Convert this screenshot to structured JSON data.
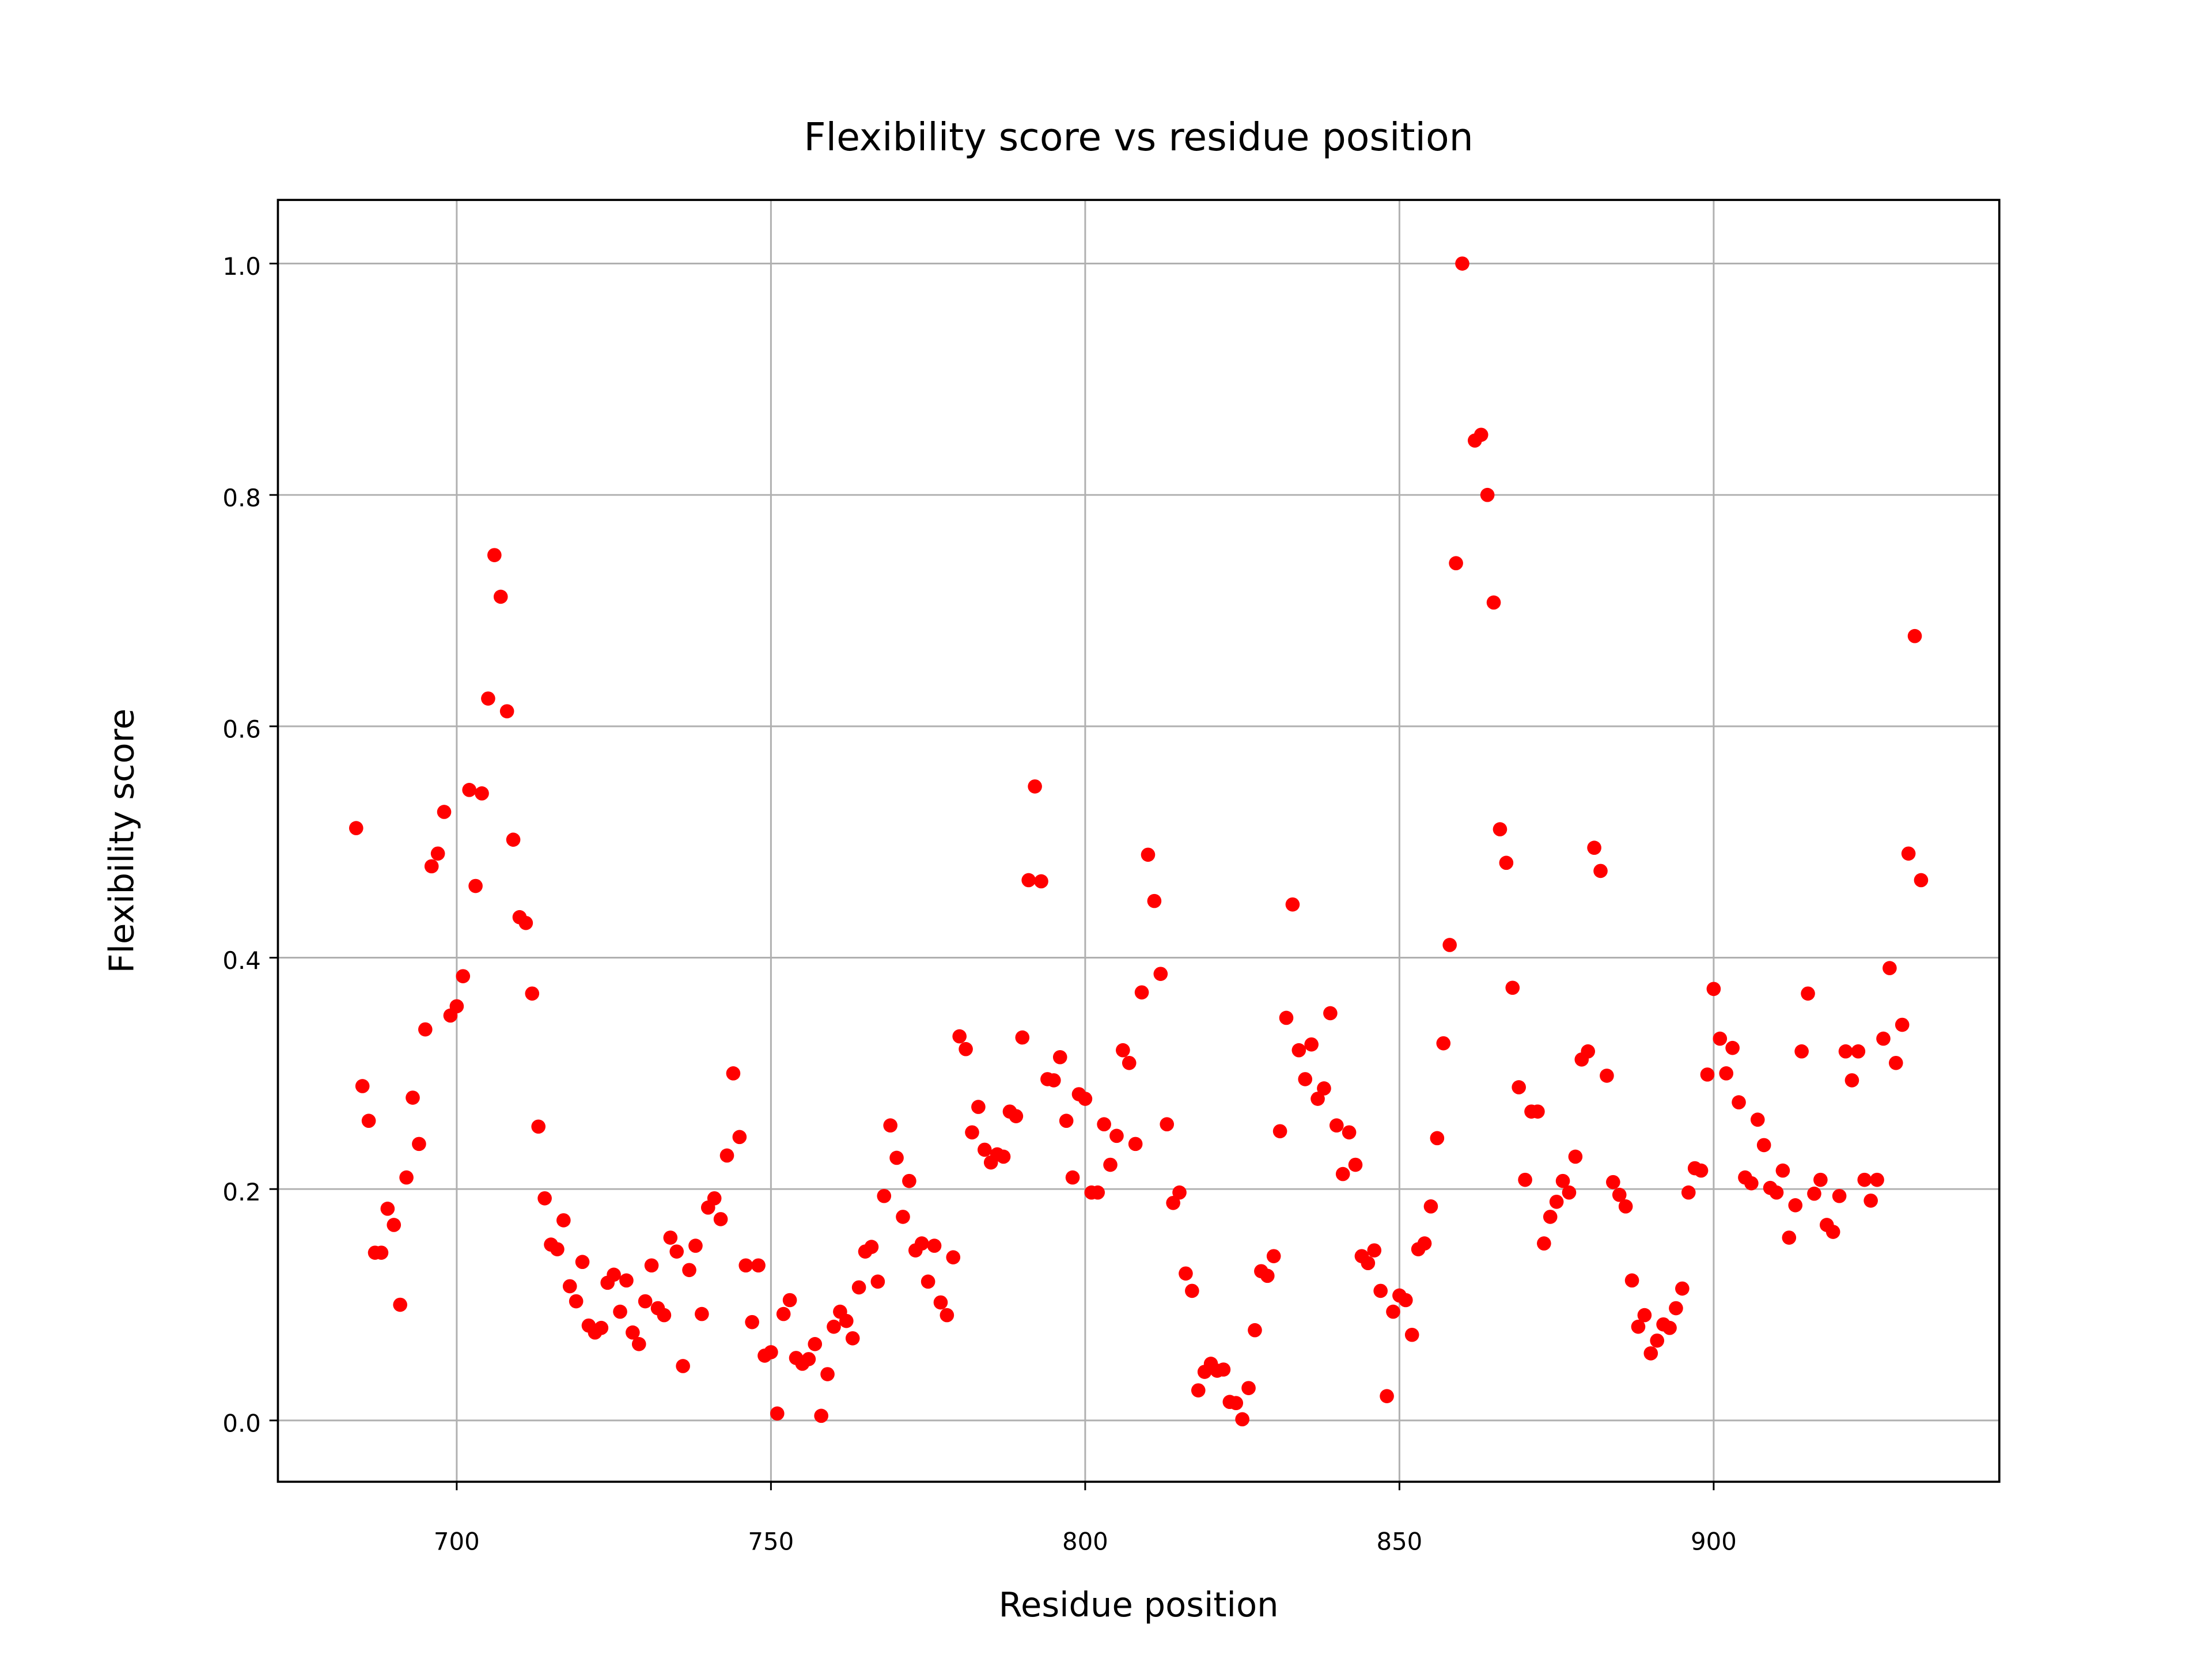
{
  "chart_data": {
    "type": "scatter",
    "title": "Flexibility score vs residue position",
    "x_label": "Residue position",
    "y_label": "Flexibility score",
    "color": "#ff0000",
    "grid": true,
    "xlim": [
      671.55,
      945.45
    ],
    "ylim": [
      -0.053,
      1.055
    ],
    "xticks": [
      700,
      750,
      800,
      850,
      900
    ],
    "yticks": [
      {
        "value": 0,
        "label": "0.0"
      },
      0.2,
      0.4,
      0.6,
      0.8,
      {
        "value": 1,
        "label": "1.0"
      }
    ],
    "x": [
      684,
      685,
      686,
      687,
      688,
      689,
      690,
      691,
      692,
      693,
      694,
      695,
      696,
      697,
      698,
      699,
      700,
      701,
      702,
      703,
      704,
      705,
      706,
      707,
      708,
      709,
      710,
      711,
      712,
      713,
      714,
      715,
      716,
      717,
      718,
      719,
      720,
      721,
      722,
      723,
      724,
      725,
      726,
      727,
      728,
      729,
      730,
      731,
      732,
      733,
      734,
      735,
      736,
      737,
      738,
      739,
      740,
      741,
      742,
      743,
      744,
      745,
      746,
      747,
      748,
      749,
      750,
      751,
      752,
      753,
      754,
      755,
      756,
      757,
      758,
      759,
      760,
      761,
      762,
      763,
      764,
      765,
      766,
      767,
      768,
      769,
      770,
      771,
      772,
      773,
      774,
      775,
      776,
      777,
      778,
      779,
      780,
      781,
      782,
      783,
      784,
      785,
      786,
      787,
      788,
      789,
      790,
      791,
      792,
      793,
      794,
      795,
      796,
      797,
      798,
      799,
      800,
      801,
      802,
      803,
      804,
      805,
      806,
      807,
      808,
      809,
      810,
      811,
      812,
      813,
      814,
      815,
      816,
      817,
      818,
      819,
      820,
      821,
      822,
      823,
      824,
      825,
      826,
      827,
      828,
      829,
      830,
      831,
      832,
      833,
      834,
      835,
      836,
      837,
      838,
      839,
      840,
      841,
      842,
      843,
      844,
      845,
      846,
      847,
      848,
      849,
      850,
      851,
      852,
      853,
      854,
      855,
      856,
      857,
      858,
      859,
      860,
      862,
      863,
      864,
      865,
      866,
      867,
      868,
      869,
      870,
      871,
      872,
      873,
      874,
      875,
      876,
      877,
      878,
      879,
      880,
      881,
      882,
      883,
      884,
      885,
      886,
      887,
      888,
      889,
      890,
      891,
      892,
      893,
      894,
      895,
      896,
      897,
      898,
      899,
      900,
      901,
      902,
      903,
      904,
      905,
      906,
      907,
      908,
      909,
      910,
      911,
      912,
      913,
      914,
      915,
      916,
      917,
      918,
      919,
      920,
      921,
      922,
      923,
      924,
      925,
      926,
      927,
      928,
      929,
      930,
      931,
      932,
      933
    ],
    "values": [
      0.512,
      0.289,
      0.259,
      0.145,
      0.145,
      0.183,
      0.169,
      0.1,
      0.21,
      0.279,
      0.239,
      0.338,
      0.479,
      0.49,
      0.526,
      0.35,
      0.358,
      0.384,
      0.545,
      0.462,
      0.542,
      0.624,
      0.748,
      0.712,
      0.613,
      0.502,
      0.435,
      0.43,
      0.369,
      0.254,
      0.192,
      0.152,
      0.148,
      0.173,
      0.116,
      0.103,
      0.137,
      0.082,
      0.076,
      0.08,
      0.119,
      0.126,
      0.094,
      0.121,
      0.076,
      0.066,
      0.103,
      0.134,
      0.097,
      0.091,
      0.158,
      0.146,
      0.047,
      0.13,
      0.151,
      0.092,
      0.184,
      0.192,
      0.174,
      0.229,
      0.3,
      0.245,
      0.134,
      0.085,
      0.134,
      0.056,
      0.059,
      0.006,
      0.092,
      0.104,
      0.054,
      0.049,
      0.053,
      0.066,
      0.004,
      0.04,
      0.081,
      0.094,
      0.086,
      0.071,
      0.115,
      0.146,
      0.15,
      0.12,
      0.194,
      0.255,
      0.227,
      0.176,
      0.207,
      0.147,
      0.153,
      0.12,
      0.151,
      0.102,
      0.091,
      0.141,
      0.332,
      0.321,
      0.249,
      0.271,
      0.234,
      0.223,
      0.23,
      0.228,
      0.267,
      0.263,
      0.331,
      0.467,
      0.548,
      0.466,
      0.295,
      0.294,
      0.314,
      0.259,
      0.21,
      0.282,
      0.278,
      0.197,
      0.197,
      0.256,
      0.221,
      0.246,
      0.32,
      0.309,
      0.239,
      0.37,
      0.489,
      0.449,
      0.386,
      0.256,
      0.188,
      0.197,
      0.127,
      0.112,
      0.026,
      0.042,
      0.049,
      0.043,
      0.044,
      0.016,
      0.015,
      0.001,
      0.028,
      0.078,
      0.129,
      0.125,
      0.142,
      0.25,
      0.348,
      0.446,
      0.32,
      0.295,
      0.325,
      0.278,
      0.287,
      0.352,
      0.255,
      0.213,
      0.249,
      0.221,
      0.142,
      0.136,
      0.147,
      0.112,
      0.021,
      0.094,
      0.108,
      0.104,
      0.074,
      0.148,
      0.153,
      0.185,
      0.244,
      0.326,
      0.411,
      0.741,
      1.0,
      0.847,
      0.852,
      0.8,
      0.707,
      0.511,
      0.482,
      0.374,
      0.288,
      0.208,
      0.267,
      0.267,
      0.153,
      0.176,
      0.189,
      0.207,
      0.197,
      0.228,
      0.312,
      0.319,
      0.495,
      0.475,
      0.298,
      0.206,
      0.195,
      0.185,
      0.121,
      0.081,
      0.091,
      0.058,
      0.069,
      0.083,
      0.08,
      0.097,
      0.114,
      0.197,
      0.218,
      0.216,
      0.299,
      0.373,
      0.33,
      0.3,
      0.322,
      0.275,
      0.21,
      0.205,
      0.26,
      0.238,
      0.201,
      0.197,
      0.216,
      0.158,
      0.186,
      0.319,
      0.369,
      0.196,
      0.208,
      0.169,
      0.163,
      0.194,
      0.319,
      0.294,
      0.319,
      0.208,
      0.19,
      0.208,
      0.33,
      0.391,
      0.309,
      0.342,
      0.49,
      0.678,
      0.467
    ]
  }
}
